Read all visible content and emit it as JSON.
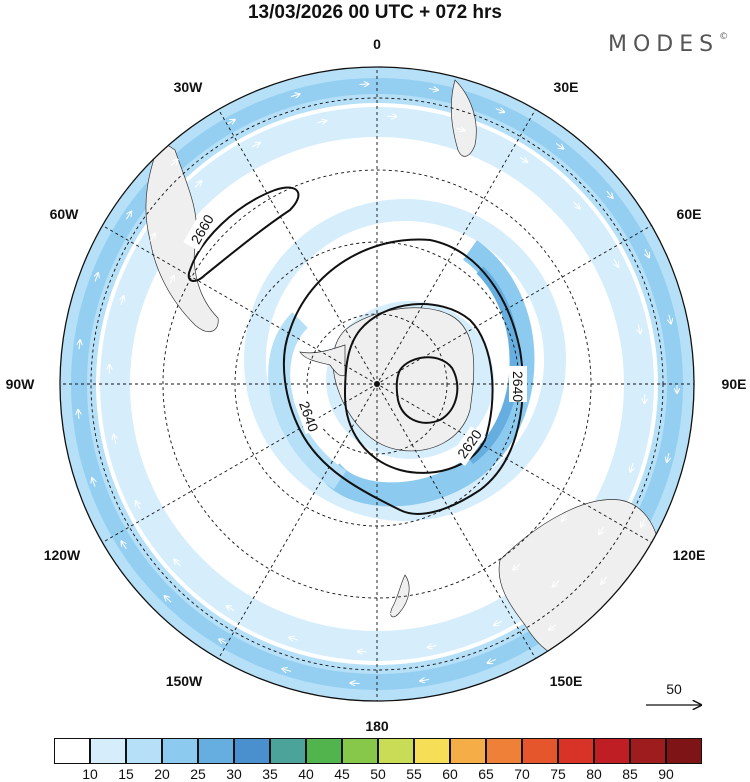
{
  "title": "13/03/2026  00 UTC  + 072 hrs",
  "brand": "MODES",
  "brand_mark": "©",
  "map": {
    "projection": "south-polar-stereographic",
    "longitude_labels": {
      "top": "0",
      "top_left": "30W",
      "top_right": "30E",
      "upper_left": "60W",
      "upper_right": "60E",
      "left": "90W",
      "right": "90E",
      "lower_left": "120W",
      "lower_right": "120E",
      "bottom_left": "150W",
      "bottom_right": "150E",
      "bottom": "180"
    },
    "contour_labels": [
      "2660",
      "2640",
      "2640",
      "2620"
    ],
    "reference_vector": "50"
  },
  "colorbar": {
    "ticks": [
      "10",
      "15",
      "20",
      "25",
      "30",
      "35",
      "40",
      "45",
      "50",
      "55",
      "60",
      "65",
      "70",
      "75",
      "80",
      "85",
      "90"
    ],
    "colors": [
      "#ffffff",
      "#d6eefc",
      "#b6e0f8",
      "#8ccbef",
      "#67aee0",
      "#4a8fce",
      "#4ca39a",
      "#52b44c",
      "#87c74a",
      "#c8dc55",
      "#f7de57",
      "#f5ae47",
      "#ee8038",
      "#e6562c",
      "#d93327",
      "#bf1f24",
      "#9e1b1e",
      "#7e1415"
    ]
  }
}
